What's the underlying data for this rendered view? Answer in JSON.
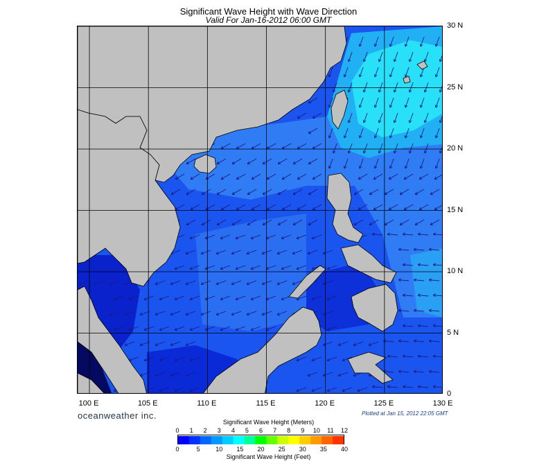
{
  "title": "Significant Wave Height with Wave Direction",
  "subtitle": "Valid For Jan-16-2012 06:00 GMT",
  "lon_labels": [
    "100 E",
    "105 E",
    "110 E",
    "115 E",
    "120 E",
    "125 E",
    "130 E"
  ],
  "lat_labels": [
    "30 N",
    "25 N",
    "20 N",
    "15 N",
    "10 N",
    "5 N",
    "0"
  ],
  "brand": "oceanweather inc.",
  "plotted": "Plotted at Jan 15, 2012 22:05 GMT",
  "colorbar": {
    "meters_title": "Significant Wave Height (Meters)",
    "feet_title": "Significant Wave Height (Feet)",
    "meters_ticks": [
      "0",
      "1",
      "2",
      "3",
      "4",
      "5",
      "6",
      "7",
      "8",
      "9",
      "10",
      "11",
      "12"
    ],
    "feet_ticks": [
      "0",
      "5",
      "10",
      "15",
      "20",
      "25",
      "30",
      "35",
      "40"
    ],
    "colors": [
      "#0000ff",
      "#0033ff",
      "#0066ff",
      "#0099ff",
      "#00ccff",
      "#00ffff",
      "#00ff99",
      "#00ff00",
      "#66ff00",
      "#ccff00",
      "#ffff00",
      "#ffcc00",
      "#ff9900",
      "#ff6600",
      "#ff3300"
    ]
  },
  "map_colors": {
    "land": "#c0c0c0",
    "sea_base": "#1a55f0",
    "sea_shallow": "#0a22cc",
    "sea_mid": "#2f7cf5",
    "sea_high": "#22b0f5",
    "sea_peak": "#28e0f8",
    "arrow": "#1a1a80"
  }
}
